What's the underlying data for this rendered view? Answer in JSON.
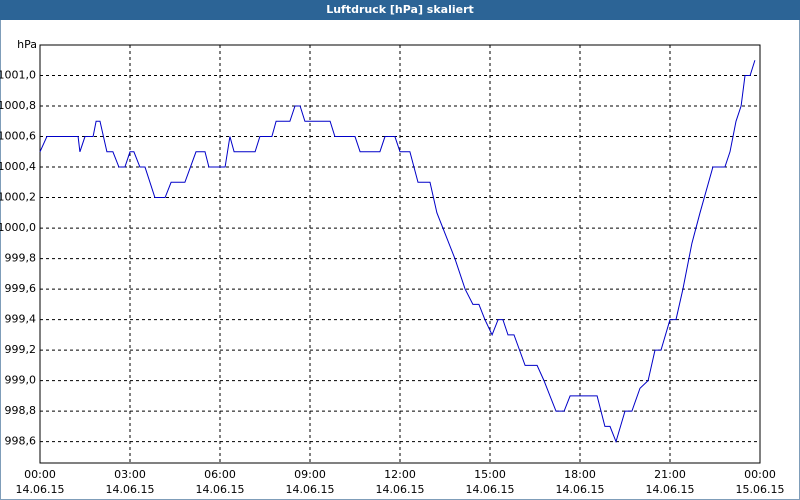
{
  "chart_data": {
    "type": "line",
    "title": "Luftdruck [hPa] skaliert",
    "y_unit_label": "hPa",
    "xlim": [
      0,
      24
    ],
    "xticks": [
      {
        "value": 0,
        "label": "00:00",
        "date": "14.06.15"
      },
      {
        "value": 3,
        "label": "03:00",
        "date": "14.06.15"
      },
      {
        "value": 6,
        "label": "06:00",
        "date": "14.06.15"
      },
      {
        "value": 9,
        "label": "09:00",
        "date": "14.06.15"
      },
      {
        "value": 12,
        "label": "12:00",
        "date": "14.06.15"
      },
      {
        "value": 15,
        "label": "15:00",
        "date": "14.06.15"
      },
      {
        "value": 18,
        "label": "18:00",
        "date": "14.06.15"
      },
      {
        "value": 21,
        "label": "21:00",
        "date": "14.06.15"
      },
      {
        "value": 24,
        "label": "00:00",
        "date": "15.06.15"
      }
    ],
    "ylim": [
      998.46,
      1001.2
    ],
    "yticks": [
      {
        "value": 998.6,
        "label": "998,6"
      },
      {
        "value": 998.8,
        "label": "998,8"
      },
      {
        "value": 999.0,
        "label": "999,0"
      },
      {
        "value": 999.2,
        "label": "999,2"
      },
      {
        "value": 999.4,
        "label": "999,4"
      },
      {
        "value": 999.6,
        "label": "999,6"
      },
      {
        "value": 999.8,
        "label": "999,8"
      },
      {
        "value": 1000.0,
        "label": "1000,0"
      },
      {
        "value": 1000.2,
        "label": "1000,2"
      },
      {
        "value": 1000.4,
        "label": "1000,4"
      },
      {
        "value": 1000.6,
        "label": "1000,6"
      },
      {
        "value": 1000.8,
        "label": "1000,8"
      },
      {
        "value": 1001.0,
        "label": "1001,0"
      }
    ],
    "grid": true,
    "series": [
      {
        "name": "Luftdruck",
        "color": "#0000c8",
        "x": [
          0,
          0.23,
          1.27,
          1.33,
          1.5,
          1.77,
          1.87,
          2,
          2.23,
          2.43,
          2.63,
          2.83,
          3,
          3.13,
          3.33,
          3.5,
          3.83,
          4.17,
          4.37,
          4.83,
          5.2,
          5.5,
          5.63,
          6.17,
          6.33,
          6.47,
          7.17,
          7.33,
          7.73,
          7.87,
          8.33,
          8.5,
          8.67,
          8.83,
          9.67,
          9.83,
          10.5,
          10.67,
          11.33,
          11.5,
          11.83,
          12,
          12.33,
          12.6,
          13,
          13.23,
          13.43,
          13.83,
          14.17,
          14.43,
          14.63,
          14.83,
          15.07,
          15.27,
          15.43,
          15.6,
          15.8,
          16.17,
          16.57,
          16.8,
          17,
          17.2,
          17.47,
          17.67,
          18.57,
          18.83,
          19,
          19.2,
          19.5,
          19.73,
          20,
          20.27,
          20.5,
          20.7,
          21,
          21.2,
          21.43,
          21.73,
          22,
          22.43,
          22.83,
          23,
          23.2,
          23.37,
          23.5,
          23.67,
          23.83
        ],
        "values": [
          1000.5,
          1000.6,
          1000.6,
          1000.5,
          1000.6,
          1000.6,
          1000.7,
          1000.7,
          1000.5,
          1000.5,
          1000.4,
          1000.4,
          1000.5,
          1000.5,
          1000.4,
          1000.4,
          1000.2,
          1000.2,
          1000.3,
          1000.3,
          1000.5,
          1000.5,
          1000.4,
          1000.4,
          1000.6,
          1000.5,
          1000.5,
          1000.6,
          1000.6,
          1000.7,
          1000.7,
          1000.8,
          1000.8,
          1000.7,
          1000.7,
          1000.6,
          1000.6,
          1000.5,
          1000.5,
          1000.6,
          1000.6,
          1000.5,
          1000.5,
          1000.3,
          1000.3,
          1000.1,
          1000.0,
          999.8,
          999.6,
          999.5,
          999.5,
          999.4,
          999.3,
          999.4,
          999.4,
          999.3,
          999.3,
          999.1,
          999.1,
          999.0,
          998.9,
          998.8,
          998.8,
          998.9,
          998.9,
          998.7,
          998.7,
          998.6,
          998.8,
          998.8,
          998.95,
          999.0,
          999.2,
          999.2,
          999.4,
          999.4,
          999.6,
          999.9,
          1000.1,
          1000.4,
          1000.4,
          1000.5,
          1000.7,
          1000.8,
          1001.0,
          1001.0,
          1001.1
        ]
      }
    ]
  }
}
